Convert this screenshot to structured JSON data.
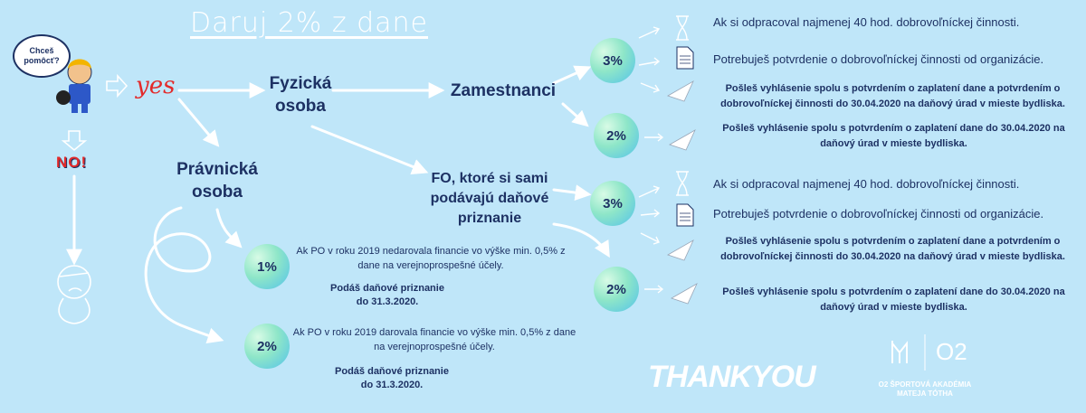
{
  "title": "Daruj 2% z dane",
  "bubble": "Chceš pomôcť?",
  "yes": "yes",
  "no": "NO!",
  "branches": {
    "fyzicka": "Fyzická osoba",
    "pravnicka": "Právnická osoba",
    "zamestnanci": "Zamestnanci",
    "fo_self": "FO, ktoré si sami podávajú daňové priznanie"
  },
  "pravnicka_options": [
    {
      "percent": "1%",
      "condition": "Ak PO v roku 2019 nedarovala financie vo výške min. 0,5% z dane na verejnoprospešné účely.",
      "deadline": "Podáš daňové priznanie do 31.3.2020."
    },
    {
      "percent": "2%",
      "condition": "Ak PO v roku 2019 darovala financie vo výške min. 0,5% z dane na verejnoprospešné účely.",
      "deadline": "Podáš daňové priznanie do 31.3.2020."
    }
  ],
  "zamestnanci": {
    "p3": "3%",
    "p2": "2%",
    "req1": "Ak si odpracoval najmenej 40 hod. dobrovoľníckej činnosti.",
    "req2": "Potrebuješ potvrdenie o dobrovoľníckej činnosti od organizácie.",
    "send3": "Pošleš vyhlásenie spolu s potvrdením o zaplatení dane a potvrdením o dobrovoľníckej činnosti do 30.04.2020 na daňový úrad v mieste bydliska.",
    "send2": "Pošleš vyhlásenie spolu s potvrdením o zaplatení dane do 30.04.2020 na daňový úrad v mieste bydliska."
  },
  "fo": {
    "p3": "3%",
    "p2": "2%",
    "req1": "Ak si odpracoval najmenej 40 hod. dobrovoľníckej činnosti.",
    "req2": "Potrebuješ potvrdenie o dobrovoľníckej činnosti od organizácie.",
    "send3": "Pošleš vyhlásenie spolu s potvrdením o zaplatení dane a potvrdením o dobrovoľníckej činnosti do 30.04.2020 na daňový úrad v mieste bydliska.",
    "send2": "Pošleš vyhlásenie spolu s potvrdením o zaplatení dane do 30.04.2020 na daňový úrad v mieste bydliska."
  },
  "thanks": "THANKYOU",
  "logo": {
    "o2": "O2",
    "sub": "O2 ŠPORTOVÁ AKADÉMIA MATEJA TÓTHA"
  },
  "colors": {
    "background": "#bfe6f9",
    "text": "#1d3163",
    "accent": "#e32a2a"
  }
}
